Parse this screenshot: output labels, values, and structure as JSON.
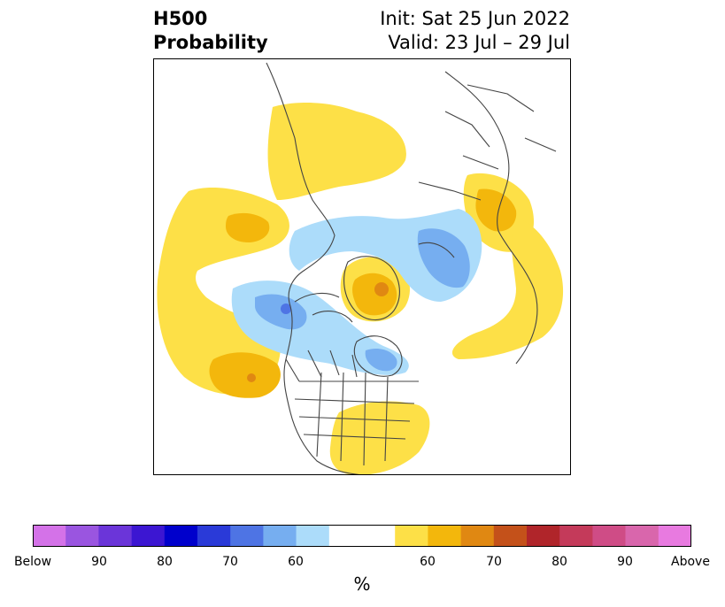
{
  "title": {
    "left_line1": "H500",
    "left_line2": "Probability",
    "right_line1": "Init: Sat 25 Jun 2022",
    "right_line2": "Valid: 23 Jul – 29 Jul"
  },
  "map": {
    "projection": "north-polar-stereographic",
    "features": [
      "coastlines",
      "country-borders",
      "state-borders"
    ],
    "anomaly_regions": [
      {
        "region": "western-canada-alaska",
        "category": "above",
        "level": "50-60"
      },
      {
        "region": "north-pacific-east",
        "category": "above",
        "level": "60-70"
      },
      {
        "region": "north-pacific-west",
        "category": "above",
        "level": "50-60"
      },
      {
        "region": "greenland",
        "category": "above",
        "level": "60-70"
      },
      {
        "region": "eastern-siberia",
        "category": "above",
        "level": "60-70"
      },
      {
        "region": "southeastern-us",
        "category": "above",
        "level": "50-60"
      },
      {
        "region": "russia-central",
        "category": "above",
        "level": "50-60"
      },
      {
        "region": "canadian-arctic",
        "category": "below",
        "level": "50-60"
      },
      {
        "region": "scandinavia-europe",
        "category": "below",
        "level": "50-60"
      },
      {
        "region": "hudson-bay",
        "category": "below",
        "level": "50-60"
      }
    ]
  },
  "colorbar": {
    "unit": "%",
    "tick_labels": [
      "Below",
      "90",
      "80",
      "70",
      "60",
      "60",
      "70",
      "80",
      "90",
      "Above"
    ],
    "colors_below": [
      "#d472e8",
      "#9a55e0",
      "#6b35d9",
      "#3c16d2",
      "#0000cc",
      "#2a3ad8",
      "#4e74e4",
      "#76aef0",
      "#acdcfa"
    ],
    "color_neutral": "#ffffff",
    "colors_above": [
      "#fde047",
      "#f3b70c",
      "#e08812",
      "#c4511a",
      "#b0252a",
      "#c43a5a",
      "#cf4c86",
      "#d966ac",
      "#e87ae0"
    ]
  }
}
